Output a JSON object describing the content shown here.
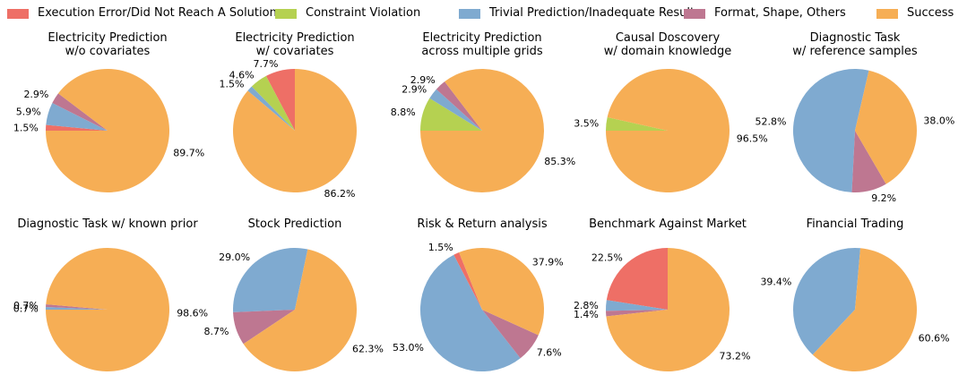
{
  "legend": {
    "categories": [
      {
        "name": "Execution Error/Did Not Reach A Solution",
        "color": "#EE6F66"
      },
      {
        "name": "Constraint Violation",
        "color": "#B5D151"
      },
      {
        "name": "Trivial Prediction/Inadequate Result",
        "color": "#7FAAD0"
      },
      {
        "name": "Format, Shape, Others",
        "color": "#BE7791"
      },
      {
        "name": "Success",
        "color": "#F6AE55"
      }
    ]
  },
  "chart_data": [
    {
      "type": "pie",
      "title": [
        "Electricity Prediction",
        "w/o covariates"
      ],
      "slices": [
        {
          "category": "Execution Error/Did Not Reach A Solution",
          "value": 1.5,
          "label": "1.5%"
        },
        {
          "category": "Trivial Prediction/Inadequate Result",
          "value": 5.9,
          "label": "5.9%"
        },
        {
          "category": "Format, Shape, Others",
          "value": 2.9,
          "label": "2.9%"
        },
        {
          "category": "Success",
          "value": 89.7,
          "label": "89.7%"
        }
      ]
    },
    {
      "type": "pie",
      "title": [
        "Electricity Prediction",
        "w/ covariates"
      ],
      "slices": [
        {
          "category": "Execution Error/Did Not Reach A Solution",
          "value": 7.7,
          "label": "7.7%"
        },
        {
          "category": "Constraint Violation",
          "value": 4.6,
          "label": "4.6%"
        },
        {
          "category": "Trivial Prediction/Inadequate Result",
          "value": 1.5,
          "label": "1.5%"
        },
        {
          "category": "Success",
          "value": 86.2,
          "label": "86.2%"
        }
      ]
    },
    {
      "type": "pie",
      "title": [
        "Electricity Prediction",
        "across multiple grids"
      ],
      "slices": [
        {
          "category": "Constraint Violation",
          "value": 8.8,
          "label": "8.8%"
        },
        {
          "category": "Trivial Prediction/Inadequate Result",
          "value": 2.9,
          "label": "2.9%"
        },
        {
          "category": "Format, Shape, Others",
          "value": 2.9,
          "label": "2.9%"
        },
        {
          "category": "Success",
          "value": 85.3,
          "label": "85.3%"
        }
      ]
    },
    {
      "type": "pie",
      "title": [
        "Causal Doscovery",
        "w/ domain knowledge"
      ],
      "slices": [
        {
          "category": "Constraint Violation",
          "value": 3.5,
          "label": "3.5%"
        },
        {
          "category": "Success",
          "value": 96.5,
          "label": "96.5%"
        }
      ]
    },
    {
      "type": "pie",
      "title": [
        "Diagnostic Task",
        "w/ reference samples"
      ],
      "slices": [
        {
          "category": "Trivial Prediction/Inadequate Result",
          "value": 52.8,
          "label": "52.8%"
        },
        {
          "category": "Format, Shape, Others",
          "value": 9.2,
          "label": "9.2%"
        },
        {
          "category": "Success",
          "value": 38.0,
          "label": "38.0%"
        }
      ]
    },
    {
      "type": "pie",
      "title": [
        "Diagnostic Task w/ known prior"
      ],
      "slices": [
        {
          "category": "Trivial Prediction/Inadequate Result",
          "value": 0.7,
          "label": "0.7%"
        },
        {
          "category": "Format, Shape, Others",
          "value": 0.7,
          "label": "0.7%"
        },
        {
          "category": "Success",
          "value": 98.6,
          "label": "98.6%"
        }
      ]
    },
    {
      "type": "pie",
      "title": [
        "Stock Prediction"
      ],
      "slices": [
        {
          "category": "Trivial Prediction/Inadequate Result",
          "value": 29.0,
          "label": "29.0%"
        },
        {
          "category": "Format, Shape, Others",
          "value": 8.7,
          "label": "8.7%"
        },
        {
          "category": "Success",
          "value": 62.3,
          "label": "62.3%"
        }
      ]
    },
    {
      "type": "pie",
      "title": [
        "Risk & Return analysis"
      ],
      "slices": [
        {
          "category": "Execution Error/Did Not Reach A Solution",
          "value": 1.5,
          "label": "1.5%"
        },
        {
          "category": "Trivial Prediction/Inadequate Result",
          "value": 53.0,
          "label": "53.0%"
        },
        {
          "category": "Format, Shape, Others",
          "value": 7.6,
          "label": "7.6%"
        },
        {
          "category": "Success",
          "value": 37.9,
          "label": "37.9%"
        }
      ]
    },
    {
      "type": "pie",
      "title": [
        "Benchmark Against Market"
      ],
      "slices": [
        {
          "category": "Execution Error/Did Not Reach A Solution",
          "value": 22.5,
          "label": "22.5%"
        },
        {
          "category": "Trivial Prediction/Inadequate Result",
          "value": 2.8,
          "label": "2.8%"
        },
        {
          "category": "Format, Shape, Others",
          "value": 1.4,
          "label": "1.4%"
        },
        {
          "category": "Success",
          "value": 73.2,
          "label": "73.2%"
        }
      ]
    },
    {
      "type": "pie",
      "title": [
        "Financial Trading"
      ],
      "slices": [
        {
          "category": "Trivial Prediction/Inadequate Result",
          "value": 39.4,
          "label": "39.4%"
        },
        {
          "category": "Success",
          "value": 60.6,
          "label": "60.6%"
        }
      ]
    }
  ]
}
